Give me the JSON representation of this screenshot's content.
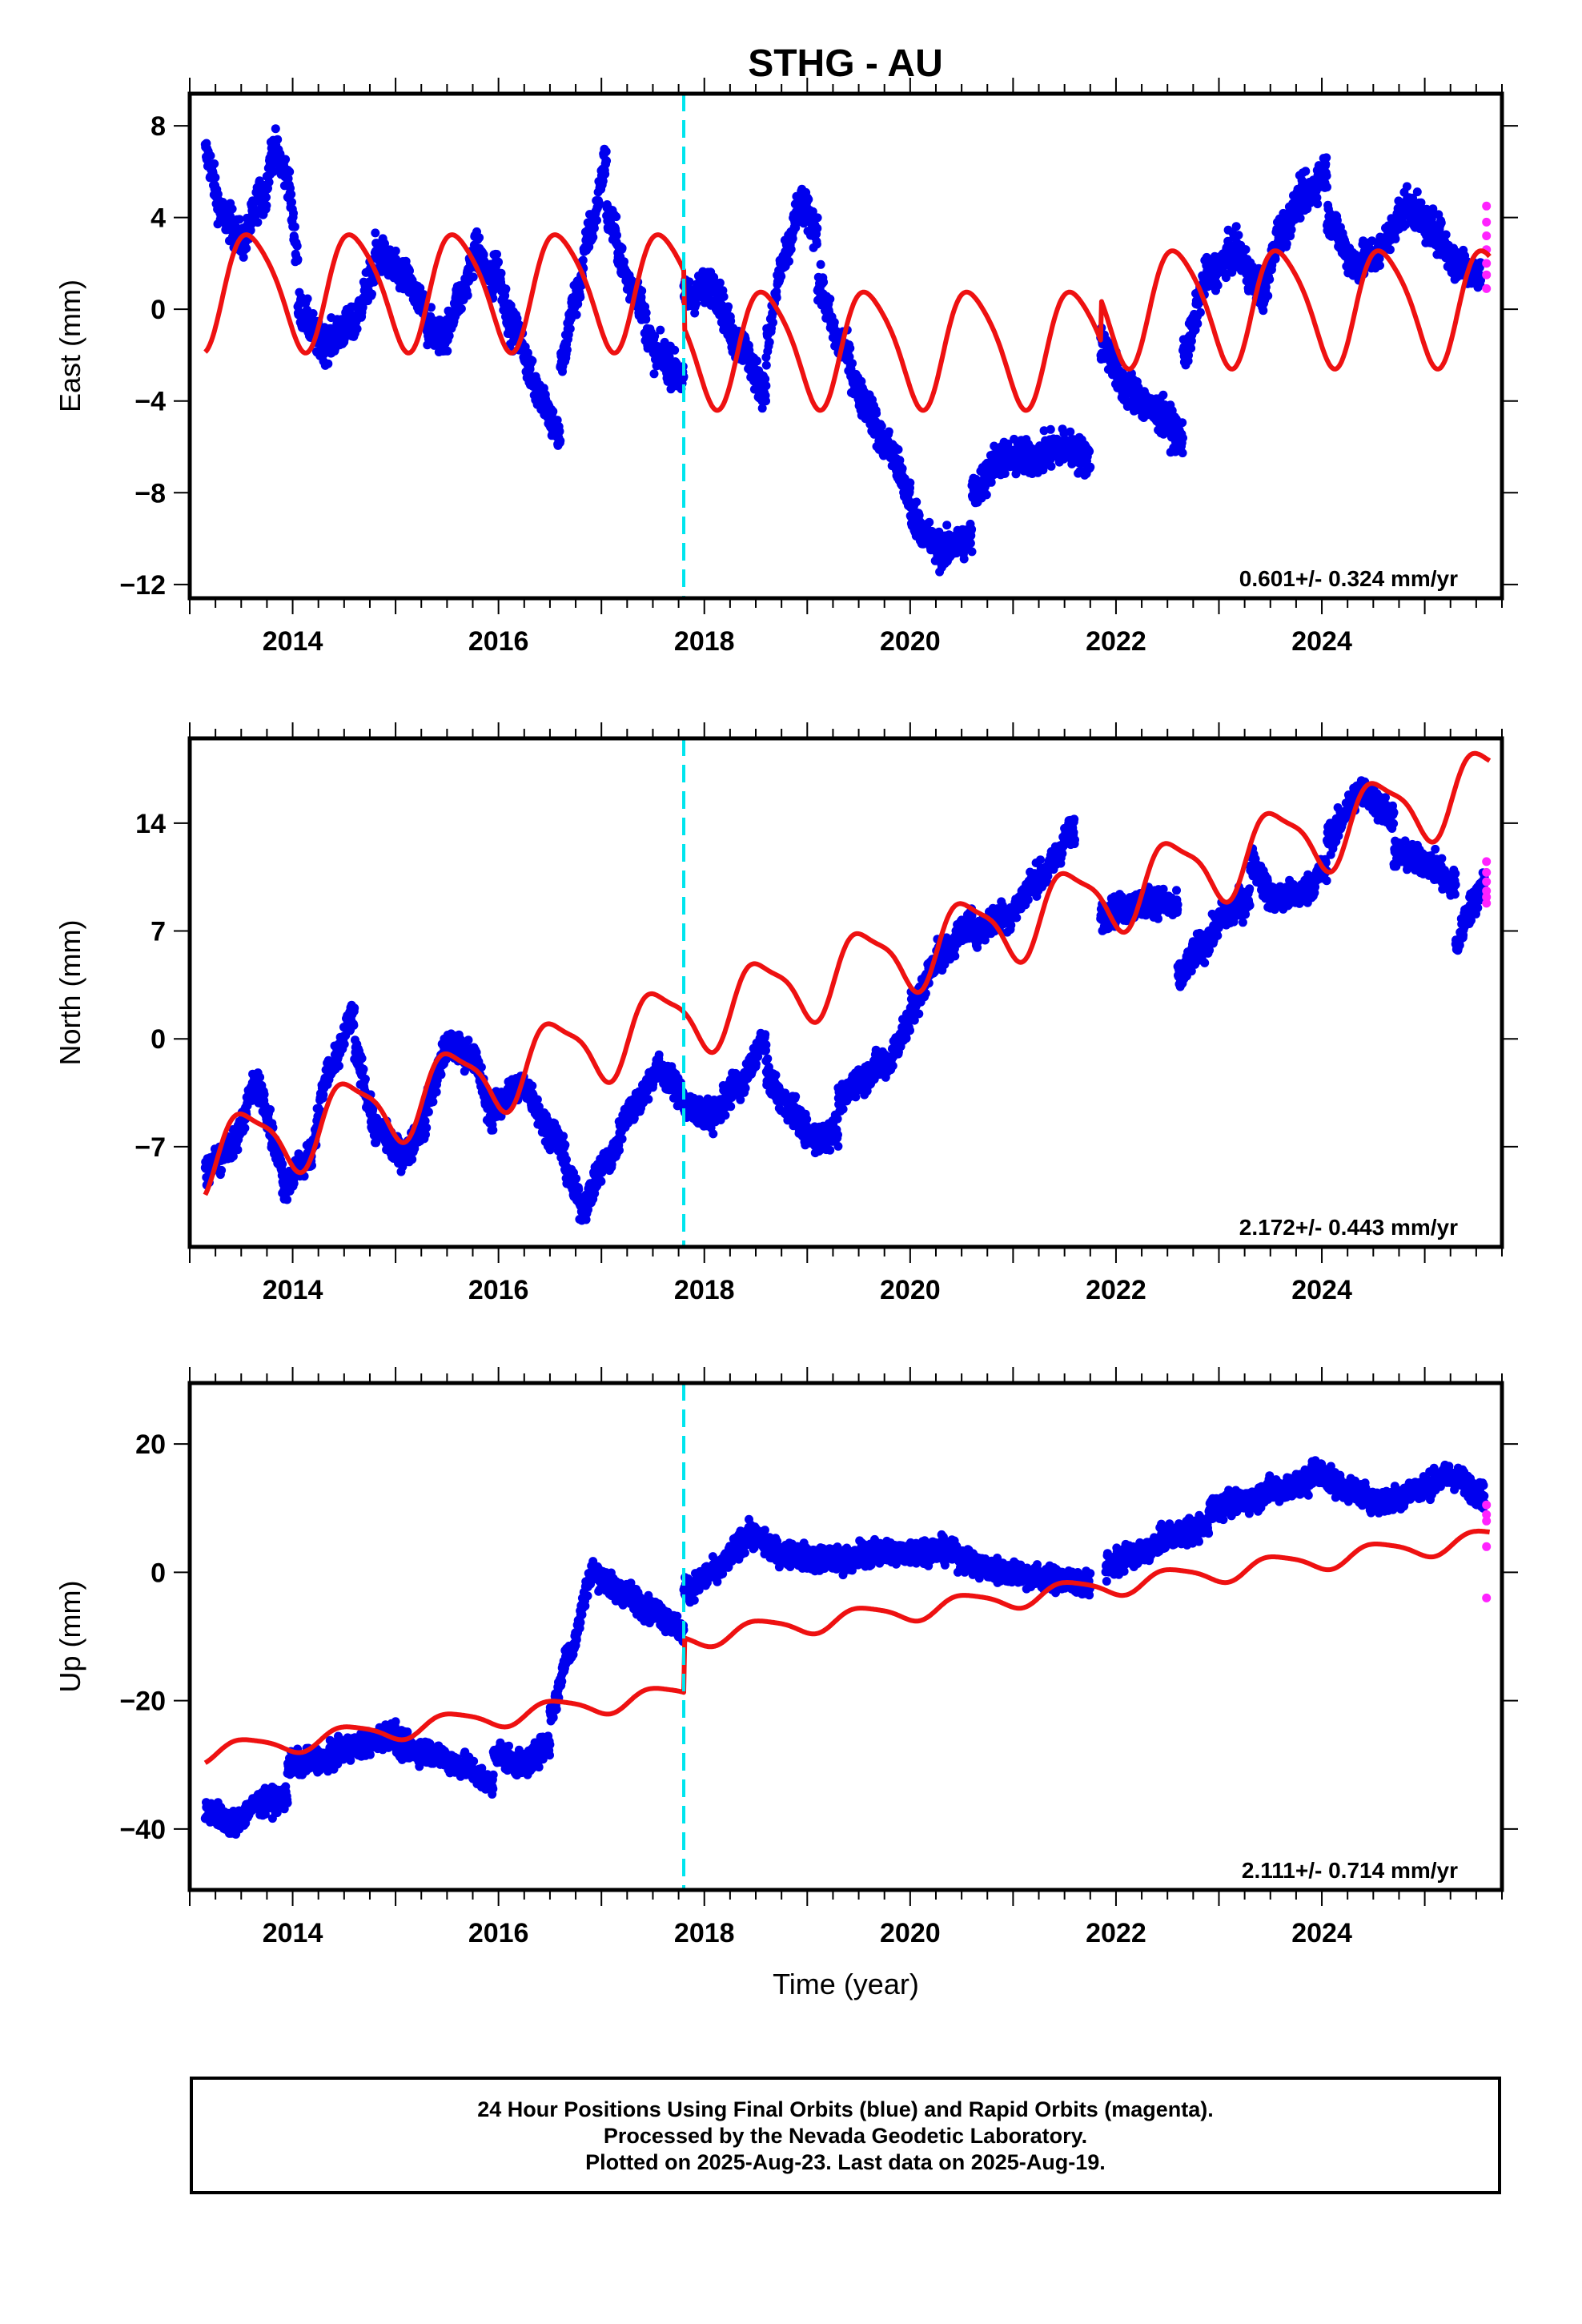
{
  "title": "STHG - AU",
  "footer": {
    "line1": "24 Hour Positions Using Final Orbits (blue) and Rapid Orbits (magenta).",
    "line2": "Processed by the Nevada Geodetic Laboratory.",
    "line3": "Plotted on 2025-Aug-23. Last data on 2025-Aug-19."
  },
  "colors": {
    "final": "#0000ee",
    "rapid": "#ff22ff",
    "model": "#ee1111",
    "event": "#00e5ee"
  },
  "chart_data": [
    {
      "type": "scatter",
      "ylabel": "East (mm)",
      "xlabel": "",
      "xlim": [
        2013.0,
        2025.75
      ],
      "ylim": [
        -12.6,
        9.4
      ],
      "yticks": [
        -12,
        -8,
        -4,
        0,
        4,
        8
      ],
      "xticks": [
        2014,
        2016,
        2018,
        2020,
        2022,
        2024
      ],
      "event_lines": [
        2017.8
      ],
      "rate_label": "0.601+/- 0.324 mm/yr",
      "model": {
        "offset": 0.0,
        "trend": 0.0,
        "segments": [
          {
            "start": 2013.0,
            "end": 2017.8,
            "offset": 0.9
          },
          {
            "start": 2017.8,
            "end": 2021.85,
            "offset": -1.6
          },
          {
            "start": 2021.85,
            "end": 2025.63,
            "offset": 0.2
          }
        ],
        "amp1": 2.5,
        "phase1": 2013.35,
        "amp2": 0.4
      },
      "final_series": [
        {
          "start": 2013.15,
          "end": 2013.7,
          "values": [
            6.8,
            4.0,
            3.0,
            5.0
          ]
        },
        {
          "start": 2013.7,
          "end": 2014.05,
          "values": [
            4.5,
            7.0,
            6.0,
            2.5
          ]
        },
        {
          "start": 2014.05,
          "end": 2014.8,
          "values": [
            0.0,
            -1.5,
            -0.8,
            1.5
          ]
        },
        {
          "start": 2014.8,
          "end": 2015.3,
          "values": [
            2.5,
            1.5,
            0.0
          ]
        },
        {
          "start": 2015.3,
          "end": 2015.95,
          "values": [
            -0.8,
            -1.2,
            0.5,
            2.5,
            1.0
          ]
        },
        {
          "start": 2015.95,
          "end": 2016.6,
          "values": [
            2.0,
            -1.0,
            -3.5,
            -5.5
          ]
        },
        {
          "start": 2016.6,
          "end": 2017.05,
          "values": [
            -2.5,
            0.5,
            3.5,
            6.5
          ]
        },
        {
          "start": 2017.05,
          "end": 2017.8,
          "values": [
            4.0,
            1.0,
            -2.0,
            -3.0
          ]
        },
        {
          "start": 2017.8,
          "end": 2018.6,
          "values": [
            0.5,
            1.0,
            -1.5,
            -3.5
          ]
        },
        {
          "start": 2018.6,
          "end": 2019.1,
          "values": [
            -1.5,
            2.0,
            4.5,
            3.5
          ]
        },
        {
          "start": 2019.1,
          "end": 2020.0,
          "values": [
            1.0,
            -1.5,
            -4.0,
            -6.0,
            -8.0
          ]
        },
        {
          "start": 2020.0,
          "end": 2020.6,
          "values": [
            -9.0,
            -10.5,
            -10.0
          ]
        },
        {
          "start": 2020.6,
          "end": 2021.75,
          "values": [
            -8.0,
            -6.5,
            -6.5,
            -6.0,
            -6.5
          ]
        },
        {
          "start": 2021.85,
          "end": 2022.65,
          "values": [
            -1.5,
            -3.5,
            -4.5,
            -5.5
          ]
        },
        {
          "start": 2022.65,
          "end": 2023.4,
          "values": [
            -2.0,
            1.5,
            2.5,
            1.0
          ]
        },
        {
          "start": 2023.4,
          "end": 2024.05,
          "values": [
            0.5,
            3.5,
            5.0,
            6.0
          ]
        },
        {
          "start": 2024.05,
          "end": 2024.6,
          "values": [
            4.0,
            2.0,
            2.5
          ]
        },
        {
          "start": 2024.6,
          "end": 2025.55,
          "values": [
            3.0,
            4.5,
            3.5,
            2.0,
            1.5
          ]
        }
      ],
      "final_noise": 1.0,
      "rapid_points": [
        4.5,
        3.8,
        3.2,
        2.6,
        2.0,
        1.5,
        0.9
      ]
    },
    {
      "type": "scatter",
      "ylabel": "North (mm)",
      "xlabel": "",
      "xlim": [
        2013.0,
        2025.75
      ],
      "ylim": [
        -13.5,
        19.5
      ],
      "yticks": [
        -7,
        0,
        7,
        14
      ],
      "xticks": [
        2014,
        2016,
        2018,
        2020,
        2022,
        2024
      ],
      "event_lines": [
        2017.8
      ],
      "rate_label": "2.172+/- 0.443 mm/yr",
      "model": {
        "offset": -8.0,
        "trend": 1.95,
        "segments": [],
        "amp1": 2.3,
        "phase1": 2013.3,
        "amp2": 0.6
      },
      "final_series": [
        {
          "start": 2013.15,
          "end": 2013.9,
          "values": [
            -8.5,
            -7.0,
            -3.0,
            -8.0
          ]
        },
        {
          "start": 2013.9,
          "end": 2014.6,
          "values": [
            -9.5,
            -8.0,
            -2.0,
            1.5
          ]
        },
        {
          "start": 2014.6,
          "end": 2015.3,
          "values": [
            -1.0,
            -6.0,
            -7.5,
            -5.5
          ]
        },
        {
          "start": 2015.3,
          "end": 2015.95,
          "values": [
            -4.0,
            -0.5,
            -1.0,
            -5.0
          ]
        },
        {
          "start": 2015.95,
          "end": 2016.8,
          "values": [
            -4.5,
            -3.0,
            -6.0,
            -10.5
          ]
        },
        {
          "start": 2016.8,
          "end": 2017.8,
          "values": [
            -11.0,
            -8.0,
            -4.5,
            -2.0,
            -3.5
          ]
        },
        {
          "start": 2017.8,
          "end": 2018.6,
          "values": [
            -4.5,
            -5.0,
            -3.0,
            0.0
          ]
        },
        {
          "start": 2018.6,
          "end": 2019.3,
          "values": [
            -2.5,
            -4.5,
            -6.5,
            -6.0
          ]
        },
        {
          "start": 2019.3,
          "end": 2020.0,
          "values": [
            -4.0,
            -2.5,
            -1.5,
            1.0
          ]
        },
        {
          "start": 2020.0,
          "end": 2020.6,
          "values": [
            2.0,
            5.5,
            7.5
          ]
        },
        {
          "start": 2020.6,
          "end": 2021.6,
          "values": [
            7.0,
            8.0,
            10.5,
            13.5
          ]
        },
        {
          "start": 2021.85,
          "end": 2022.6,
          "values": [
            8.0,
            8.5,
            9.0,
            8.5
          ]
        },
        {
          "start": 2022.6,
          "end": 2023.3,
          "values": [
            4.0,
            6.0,
            8.0,
            9.0
          ]
        },
        {
          "start": 2023.3,
          "end": 2024.05,
          "values": [
            11.5,
            9.0,
            9.5,
            11.0
          ]
        },
        {
          "start": 2024.05,
          "end": 2024.7,
          "values": [
            13.0,
            16.0,
            14.5
          ]
        },
        {
          "start": 2024.7,
          "end": 2025.3,
          "values": [
            12.0,
            11.5,
            10.0
          ]
        },
        {
          "start": 2025.3,
          "end": 2025.58,
          "values": [
            6.0,
            8.5,
            10.0
          ]
        }
      ],
      "final_noise": 1.2,
      "rapid_points": [
        11.5,
        10.8,
        10.2,
        9.6,
        9.2,
        8.8
      ]
    },
    {
      "type": "scatter",
      "ylabel": "Up (mm)",
      "xlabel": "Time (year)",
      "xlim": [
        2013.0,
        2025.75
      ],
      "ylim": [
        -49.5,
        29.5
      ],
      "yticks": [
        -40,
        -20,
        0,
        20
      ],
      "xticks": [
        2014,
        2016,
        2018,
        2020,
        2022,
        2024
      ],
      "event_lines": [
        2017.8
      ],
      "rate_label": "2.111+/- 0.714 mm/yr",
      "model": {
        "offset": -28.5,
        "trend": 2.0,
        "segments": [
          {
            "start": 2013.0,
            "end": 2017.8,
            "offset": 0.0
          },
          {
            "start": 2017.8,
            "end": 2025.63,
            "offset": 8.5
          }
        ],
        "amp1": 1.5,
        "phase1": 2013.3,
        "amp2": 0.3
      },
      "final_series": [
        {
          "start": 2013.15,
          "end": 2013.95,
          "values": [
            -37.0,
            -39.0,
            -36.0,
            -35.0
          ]
        },
        {
          "start": 2013.95,
          "end": 2015.0,
          "values": [
            -30.0,
            -29.0,
            -27.0,
            -25.0
          ]
        },
        {
          "start": 2015.0,
          "end": 2015.95,
          "values": [
            -27.0,
            -28.0,
            -30.0,
            -33.0
          ]
        },
        {
          "start": 2015.95,
          "end": 2016.5,
          "values": [
            -28.0,
            -30.0,
            -27.0
          ]
        },
        {
          "start": 2016.5,
          "end": 2016.9,
          "values": [
            -22.0,
            -12.0,
            -1.0
          ]
        },
        {
          "start": 2016.9,
          "end": 2017.8,
          "values": [
            0.0,
            -3.0,
            -6.0,
            -9.0
          ]
        },
        {
          "start": 2017.8,
          "end": 2018.4,
          "values": [
            -3.0,
            0.0,
            5.0
          ]
        },
        {
          "start": 2018.4,
          "end": 2019.5,
          "values": [
            6.0,
            3.0,
            2.0,
            2.0
          ]
        },
        {
          "start": 2019.5,
          "end": 2020.6,
          "values": [
            3.0,
            3.0,
            3.5,
            2.0
          ]
        },
        {
          "start": 2020.6,
          "end": 2021.75,
          "values": [
            1.0,
            0.0,
            -1.0,
            -2.0
          ]
        },
        {
          "start": 2021.9,
          "end": 2022.9,
          "values": [
            1.0,
            3.0,
            6.0,
            7.0
          ]
        },
        {
          "start": 2022.9,
          "end": 2023.9,
          "values": [
            10.0,
            11.0,
            13.0,
            14.0
          ]
        },
        {
          "start": 2023.9,
          "end": 2024.6,
          "values": [
            16.0,
            13.0,
            11.0
          ]
        },
        {
          "start": 2024.6,
          "end": 2025.58,
          "values": [
            11.0,
            13.0,
            15.0,
            12.0
          ]
        }
      ],
      "final_noise": 2.4,
      "rapid_points": [
        10.5,
        9.0,
        8.0,
        4.0,
        -4.0
      ]
    }
  ]
}
